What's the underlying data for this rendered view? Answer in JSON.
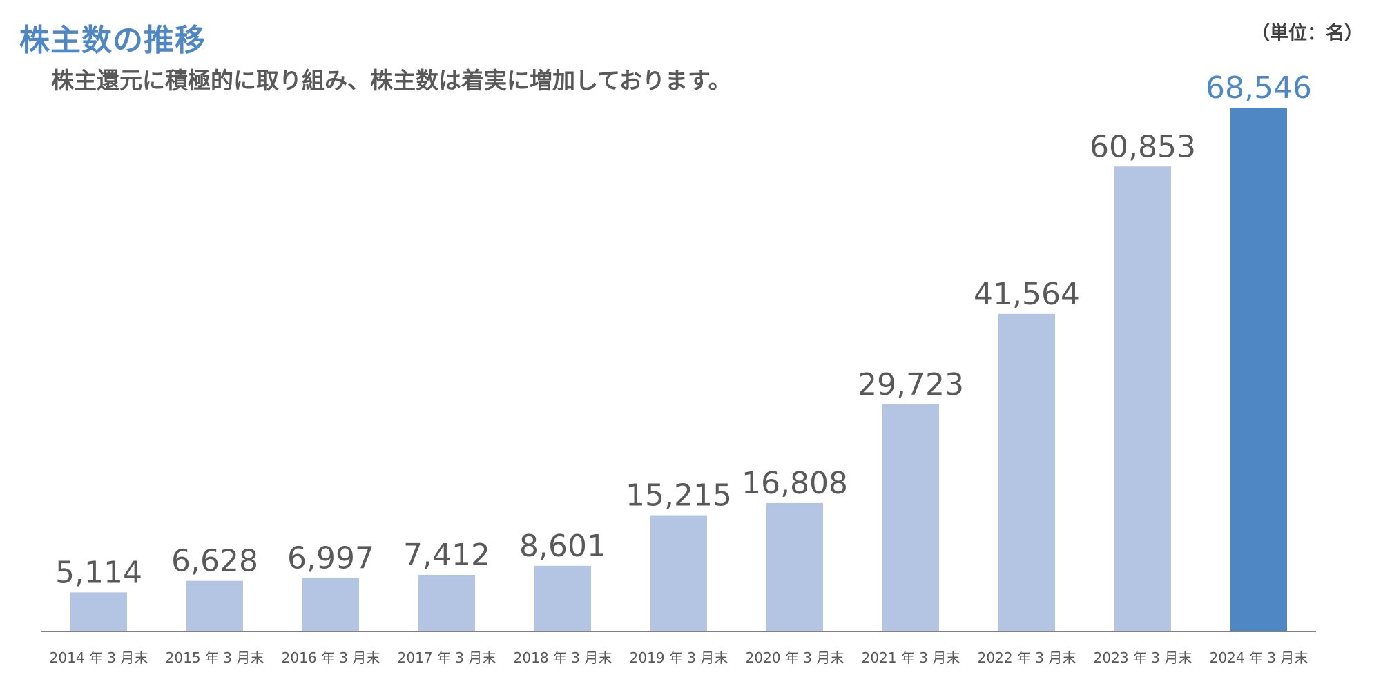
{
  "header": {
    "title": "株主数の推移",
    "subtitle": "株主還元に積極的に取り組み、株主数は着実に増加しております。",
    "unit": "（単位：名）"
  },
  "colors": {
    "bar": "#B4C5E4",
    "bar_highlight": "#4F87C5",
    "title": "#4F87C5",
    "axis": "#808080",
    "text": "#595959"
  },
  "chart_data": {
    "type": "bar",
    "categories": [
      "2014 年 3 月末",
      "2015 年 3 月末",
      "2016 年 3 月末",
      "2017 年 3 月末",
      "2018 年 3 月末",
      "2019 年 3 月末",
      "2020 年 3 月末",
      "2021 年 3 月末",
      "2022 年 3 月末",
      "2023 年 3 月末",
      "2024 年 3 月末"
    ],
    "values": [
      5114,
      6628,
      6997,
      7412,
      8601,
      15215,
      16808,
      29723,
      41564,
      60853,
      68546
    ],
    "value_labels": [
      "5,114",
      "6,628",
      "6,997",
      "7,412",
      "8,601",
      "15,215",
      "16,808",
      "29,723",
      "41,564",
      "60,853",
      "68,546"
    ],
    "highlight_index": 10,
    "title": "株主数の推移",
    "xlabel": "",
    "ylabel": "",
    "ylim": [
      0,
      70000
    ],
    "grid": false,
    "legend": "none"
  }
}
